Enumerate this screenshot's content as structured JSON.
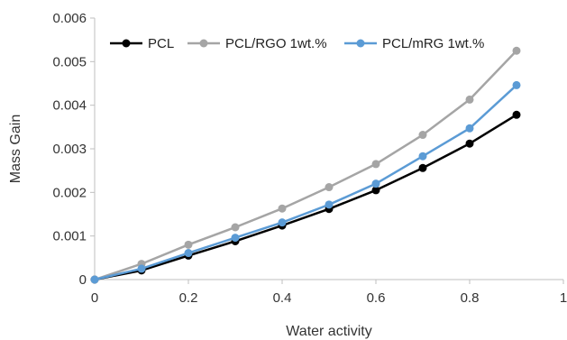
{
  "chart_data": {
    "type": "line",
    "xlabel": "Water activity",
    "ylabel": "Mass Gain",
    "xlim": [
      0,
      1
    ],
    "ylim": [
      0,
      0.006
    ],
    "x_ticks": [
      "0",
      "0.2",
      "0.4",
      "0.6",
      "0.8",
      "1"
    ],
    "y_ticks": [
      "0",
      "0.001",
      "0.002",
      "0.003",
      "0.004",
      "0.005",
      "0.006"
    ],
    "grid": false,
    "legend_position": "top-left",
    "x": [
      0,
      0.1,
      0.2,
      0.3,
      0.4,
      0.5,
      0.6,
      0.7,
      0.8,
      0.9
    ],
    "series": [
      {
        "name": "PCL",
        "color": "#000000",
        "values": [
          0,
          0.00021,
          0.00055,
          0.00088,
          0.00124,
          0.00162,
          0.00205,
          0.00256,
          0.00312,
          0.00378
        ]
      },
      {
        "name": "PCL/RGO 1wt.%",
        "color": "#a5a5a5",
        "values": [
          0,
          0.00036,
          0.0008,
          0.0012,
          0.00163,
          0.00212,
          0.00265,
          0.00332,
          0.00413,
          0.00525
        ]
      },
      {
        "name": "PCL/mRG 1wt.%",
        "color": "#5b9bd5",
        "values": [
          0,
          0.00025,
          0.00061,
          0.00096,
          0.00131,
          0.00172,
          0.0022,
          0.00283,
          0.00347,
          0.00446
        ]
      }
    ]
  }
}
